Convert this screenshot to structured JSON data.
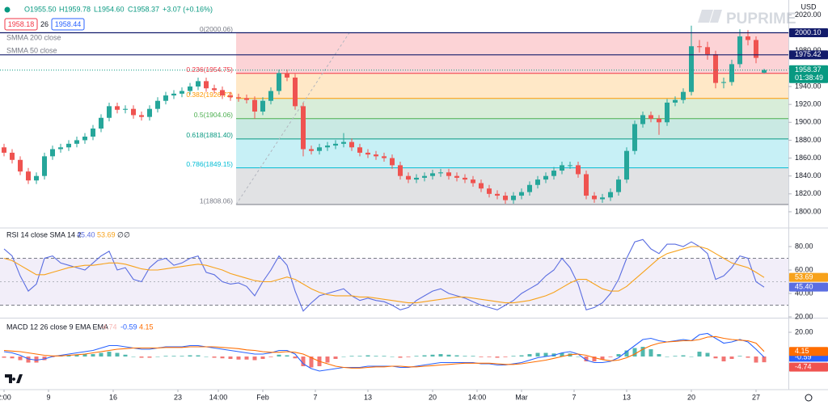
{
  "ui": {
    "ohlc": [
      "O1955.50",
      "H1959.78",
      "L1954.60",
      "C1958.37",
      "+3.07 (+0.16%)"
    ],
    "sell": "1958.18",
    "spread": "26",
    "buy": "1958.44",
    "indicators": [
      "SMMA 200 close",
      "SMMA 50 close"
    ],
    "currency": "USD",
    "watermark": "PUPRIME"
  },
  "chart_data": [
    {
      "type": "candlestick",
      "up_color": "#26a69a",
      "down_color": "#ef5350",
      "xlim": [
        -0.5,
        97
      ],
      "xticks": [
        {
          "value": 0,
          "label": "2:00"
        },
        {
          "value": 5.5,
          "label": "9"
        },
        {
          "value": 13.5,
          "label": "16"
        },
        {
          "value": 21.5,
          "label": "23"
        },
        {
          "value": 26.5,
          "label": "14:00"
        },
        {
          "value": 32,
          "label": "Feb"
        },
        {
          "value": 38.5,
          "label": "7"
        },
        {
          "value": 45,
          "label": "13"
        },
        {
          "value": 53,
          "label": "20"
        },
        {
          "value": 58.5,
          "label": "14:00"
        },
        {
          "value": 64,
          "label": "Mar"
        },
        {
          "value": 70.5,
          "label": "7"
        },
        {
          "value": 77,
          "label": "13"
        },
        {
          "value": 85,
          "label": "20"
        },
        {
          "value": 93,
          "label": "27"
        }
      ],
      "ylim": [
        1783.7,
        2036.7
      ],
      "yticks": [
        {
          "value": 1800,
          "label": "1800.00"
        },
        {
          "value": 1820,
          "label": "1820.00"
        },
        {
          "value": 1840,
          "label": "1840.00"
        },
        {
          "value": 1860,
          "label": "1860.00"
        },
        {
          "value": 1880,
          "label": "1880.00"
        },
        {
          "value": 1900,
          "label": "1900.00"
        },
        {
          "value": 1920,
          "label": "1920.00"
        },
        {
          "value": 1940,
          "label": "1940.00"
        },
        {
          "value": 1960,
          "label": "1960.00"
        },
        {
          "value": 1980,
          "label": "1980.00"
        },
        {
          "value": 2000,
          "label": "2000.00"
        },
        {
          "value": 2020,
          "label": "2020.00"
        }
      ],
      "open": [
        1872,
        1866,
        1858,
        1845,
        1835,
        1840,
        1862,
        1870,
        1872,
        1876,
        1880,
        1884,
        1893,
        1905,
        1918,
        1914,
        1915,
        1908,
        1906,
        1915,
        1924,
        1930,
        1932,
        1935,
        1940,
        1946,
        1938,
        1936,
        1930,
        1928,
        1927,
        1925,
        1912,
        1924,
        1935,
        1955,
        1950,
        1918,
        1870,
        1868,
        1872,
        1874,
        1876,
        1878,
        1872,
        1866,
        1864,
        1862,
        1860,
        1852,
        1840,
        1836,
        1838,
        1840,
        1843,
        1844,
        1840,
        1838,
        1836,
        1832,
        1826,
        1820,
        1818,
        1813,
        1818,
        1822,
        1830,
        1836,
        1840,
        1846,
        1852,
        1852,
        1842,
        1818,
        1814,
        1816,
        1822,
        1836,
        1868,
        1898,
        1908,
        1904,
        1900,
        1922,
        1925,
        1934,
        1985,
        1984,
        1976,
        1944,
        1945,
        1965,
        1996,
        1992,
        1955.5
      ],
      "high": [
        1876,
        1870,
        1862,
        1849,
        1844,
        1866,
        1874,
        1876,
        1880,
        1884,
        1888,
        1897,
        1909,
        1922,
        1922,
        1919,
        1919,
        1912,
        1919,
        1928,
        1934,
        1936,
        1939,
        1944,
        1950,
        1950,
        1942,
        1940,
        1934,
        1932,
        1931,
        1929,
        1928,
        1939,
        1959,
        1959,
        1954,
        1922,
        1874,
        1876,
        1878,
        1880,
        1888,
        1882,
        1876,
        1870,
        1868,
        1866,
        1864,
        1856,
        1844,
        1842,
        1844,
        1847,
        1848,
        1848,
        1844,
        1842,
        1840,
        1836,
        1830,
        1824,
        1822,
        1822,
        1826,
        1834,
        1840,
        1844,
        1850,
        1856,
        1856,
        1856,
        1846,
        1822,
        1820,
        1826,
        1840,
        1872,
        1902,
        1912,
        1912,
        1908,
        1926,
        1929,
        1938,
        2008,
        1992,
        1990,
        1980,
        1950,
        1970,
        2004,
        2003,
        1996,
        1959.78
      ],
      "low": [
        1862,
        1854,
        1841,
        1831,
        1831,
        1836,
        1858,
        1866,
        1868,
        1872,
        1876,
        1880,
        1889,
        1901,
        1910,
        1910,
        1904,
        1902,
        1902,
        1911,
        1920,
        1926,
        1928,
        1931,
        1936,
        1934,
        1932,
        1926,
        1924,
        1923,
        1921,
        1904,
        1908,
        1920,
        1931,
        1946,
        1914,
        1862,
        1864,
        1864,
        1868,
        1870,
        1872,
        1868,
        1862,
        1860,
        1858,
        1856,
        1848,
        1836,
        1832,
        1832,
        1834,
        1836,
        1839,
        1836,
        1834,
        1832,
        1828,
        1822,
        1816,
        1814,
        1809,
        1809,
        1814,
        1818,
        1826,
        1832,
        1836,
        1842,
        1848,
        1838,
        1814,
        1810,
        1810,
        1812,
        1818,
        1832,
        1864,
        1894,
        1900,
        1886,
        1896,
        1918,
        1921,
        1930,
        1978,
        1970,
        1938,
        1938,
        1941,
        1961,
        1986,
        1966,
        1954.6
      ],
      "close": [
        1866,
        1858,
        1845,
        1835,
        1840,
        1862,
        1870,
        1872,
        1876,
        1880,
        1884,
        1893,
        1905,
        1918,
        1914,
        1915,
        1908,
        1906,
        1915,
        1924,
        1930,
        1932,
        1935,
        1940,
        1946,
        1938,
        1936,
        1930,
        1928,
        1927,
        1925,
        1912,
        1924,
        1935,
        1955,
        1950,
        1918,
        1870,
        1868,
        1872,
        1874,
        1876,
        1878,
        1872,
        1866,
        1864,
        1862,
        1860,
        1852,
        1840,
        1836,
        1838,
        1840,
        1843,
        1844,
        1840,
        1838,
        1836,
        1832,
        1826,
        1820,
        1818,
        1813,
        1818,
        1822,
        1830,
        1836,
        1840,
        1846,
        1852,
        1852,
        1842,
        1818,
        1814,
        1816,
        1822,
        1836,
        1868,
        1898,
        1908,
        1904,
        1900,
        1922,
        1925,
        1934,
        1985,
        1984,
        1976,
        1944,
        1945,
        1965,
        1996,
        1992,
        1972,
        1958.37
      ],
      "fib": [
        {
          "price": 2000.06,
          "label": "0(2000.06)",
          "color": "#787b86"
        },
        {
          "price": 1954.75,
          "label": "0.236(1954.75)",
          "color": "#f23645"
        },
        {
          "price": 1926.72,
          "label": "0.382(1926.72)",
          "color": "#ff9800"
        },
        {
          "price": 1904.06,
          "label": "0.5(1904.06)",
          "color": "#4caf50"
        },
        {
          "price": 1881.4,
          "label": "0.618(1881.40)",
          "color": "#089981"
        },
        {
          "price": 1849.15,
          "label": "0.786(1849.15)",
          "color": "#00bcd4"
        },
        {
          "price": 1808.06,
          "label": "1(1808.06)",
          "color": "#787b86"
        }
      ],
      "price_lines": [
        {
          "value": 2000.1,
          "label": "2000.10",
          "color": "#131c6b"
        },
        {
          "value": 1975.42,
          "label": "1975.42",
          "color": "#131c6b"
        }
      ],
      "last_price": {
        "value": 1958.37,
        "label": "1958.37",
        "countdown": "01:38:49",
        "color": "#089981"
      }
    },
    {
      "type": "line",
      "title": "RSI 14 close SMA 14 2",
      "extra": [
        "∅",
        "∅"
      ],
      "ylim": [
        20,
        95.2
      ],
      "yticks": [
        {
          "value": 20,
          "label": "20.00"
        },
        {
          "value": 40,
          "label": "40.00"
        },
        {
          "value": 60,
          "label": "60.00"
        },
        {
          "value": 80,
          "label": "80.00"
        }
      ],
      "band": [
        30,
        70
      ],
      "midline": 50,
      "band_color": "#7e57c2",
      "series": [
        {
          "color": "#5b6ee1",
          "last_label": "45.40",
          "values": [
            78,
            72,
            55,
            42,
            48,
            70,
            72,
            66,
            64,
            62,
            60,
            66,
            72,
            76,
            60,
            62,
            52,
            50,
            62,
            68,
            70,
            64,
            66,
            70,
            72,
            58,
            56,
            50,
            48,
            49,
            46,
            38,
            50,
            60,
            72,
            64,
            42,
            25,
            32,
            38,
            40,
            42,
            44,
            38,
            34,
            36,
            34,
            33,
            30,
            26,
            28,
            34,
            38,
            42,
            44,
            40,
            38,
            36,
            33,
            30,
            28,
            26,
            30,
            34,
            40,
            44,
            48,
            55,
            60,
            70,
            62,
            48,
            26,
            28,
            32,
            40,
            52,
            70,
            84,
            86,
            78,
            74,
            82,
            82,
            80,
            84,
            80,
            74,
            52,
            55,
            62,
            72,
            70,
            50,
            45.4
          ]
        },
        {
          "color": "#f7a21b",
          "last_label": "53.69",
          "values": [
            70,
            68,
            64,
            60,
            56,
            56,
            58,
            60,
            62,
            63,
            64,
            64,
            65,
            66,
            66,
            65,
            63,
            61,
            60,
            60,
            61,
            62,
            63,
            64,
            65,
            64,
            62,
            60,
            57,
            55,
            53,
            51,
            50,
            50,
            52,
            54,
            52,
            48,
            44,
            41,
            39,
            38,
            38,
            38,
            37,
            37,
            36,
            35,
            34,
            33,
            32,
            32,
            33,
            34,
            35,
            36,
            37,
            37,
            36,
            35,
            34,
            33,
            32,
            32,
            33,
            34,
            36,
            38,
            41,
            45,
            49,
            52,
            52,
            48,
            44,
            42,
            42,
            46,
            52,
            58,
            64,
            70,
            74,
            76,
            78,
            80,
            80,
            78,
            74,
            70,
            66,
            64,
            62,
            58,
            53.69
          ]
        }
      ]
    },
    {
      "type": "line",
      "title": "MACD 12 26 close 9 EMA EMA",
      "ylim": [
        -26,
        30.7
      ],
      "yticks": [
        {
          "value": 20,
          "label": "20.00"
        }
      ],
      "histogram": {
        "positive_color": "#26a69a",
        "negative_color": "#ef5350",
        "last_label": "-4.74",
        "values": [
          -1,
          -1.5,
          -3,
          -5,
          -5,
          -3,
          -0.5,
          0.5,
          1,
          1.5,
          2,
          2,
          3,
          4,
          3,
          1.5,
          0,
          -1,
          -1,
          0,
          0.5,
          0.5,
          0.5,
          1,
          1,
          0,
          -1,
          -1.5,
          -2,
          -2.5,
          -2.5,
          -3,
          -2,
          -0.5,
          1.5,
          1,
          -1.5,
          -8,
          -9,
          -8,
          -5,
          -2,
          0,
          0.5,
          0.5,
          1,
          0.5,
          0.5,
          0,
          -1,
          -0.5,
          0.5,
          1,
          1.5,
          2,
          1.5,
          1,
          0.5,
          0.5,
          -0.5,
          -0.5,
          -1,
          -0.5,
          0.5,
          1,
          2,
          3,
          3,
          2.5,
          3,
          2.5,
          0,
          -4,
          -4,
          -2.5,
          -0.5,
          2,
          5,
          7,
          8,
          6,
          2,
          0,
          0.5,
          1,
          0,
          4,
          3,
          -1.5,
          -4,
          -2,
          0.5,
          -1,
          -5,
          -4.74
        ]
      },
      "series": [
        {
          "color": "#2962ff",
          "last_label": "-0.59",
          "values": [
            4,
            3,
            1,
            -2,
            -3,
            -2,
            0,
            1,
            2,
            3,
            4,
            5,
            7,
            9,
            9,
            8,
            7,
            6,
            6,
            7,
            8,
            8,
            8,
            9,
            9,
            8,
            7,
            6,
            5,
            4,
            3,
            2,
            2,
            3,
            5,
            5,
            2,
            -6,
            -10,
            -12,
            -11,
            -10,
            -9,
            -9,
            -9,
            -8,
            -8,
            -8,
            -8,
            -9,
            -9,
            -8,
            -7,
            -6,
            -5,
            -5,
            -5,
            -5,
            -5,
            -6,
            -6,
            -7,
            -7,
            -6,
            -5,
            -3,
            -1,
            0,
            1,
            3,
            4,
            2,
            -3,
            -5,
            -5,
            -4,
            -1,
            4,
            9,
            14,
            15,
            13,
            12,
            13,
            14,
            13,
            18,
            19,
            15,
            11,
            12,
            14,
            12,
            6,
            -0.59
          ]
        },
        {
          "color": "#ff6d00",
          "last_label": "4.15",
          "values": [
            5,
            4.5,
            4,
            3,
            2,
            1,
            0.5,
            0.5,
            1,
            1.5,
            2,
            3,
            4,
            5,
            6,
            6.5,
            7,
            7,
            7,
            7,
            7.5,
            7.5,
            7.5,
            8,
            8,
            8,
            8,
            7.5,
            7,
            6.5,
            5.5,
            5,
            4,
            3.5,
            3.5,
            4,
            3.5,
            2,
            -1,
            -4,
            -6,
            -8,
            -9,
            -9.5,
            -9.5,
            -9,
            -8.5,
            -8.5,
            -8,
            -8,
            -8.5,
            -8.5,
            -8,
            -7.5,
            -7,
            -6.5,
            -6,
            -5.5,
            -5.5,
            -5.5,
            -5.5,
            -6,
            -6.5,
            -6.5,
            -6,
            -5,
            -4,
            -3,
            -1.5,
            0,
            1.5,
            2,
            1,
            -1,
            -2.5,
            -3.5,
            -3,
            -1,
            2,
            6,
            9,
            11,
            12,
            12.5,
            13,
            13,
            14,
            16,
            16.5,
            15,
            14,
            13.5,
            13,
            11,
            4.15
          ]
        }
      ]
    }
  ]
}
